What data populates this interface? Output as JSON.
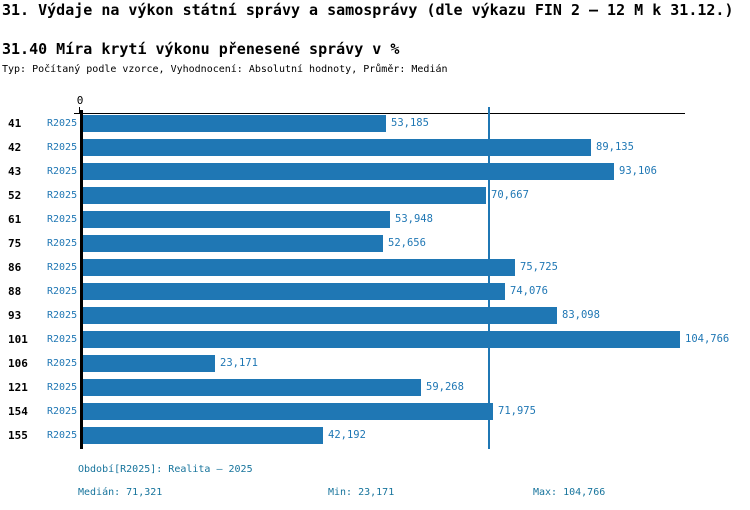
{
  "header": {
    "title": "31. Výdaje na výkon státní správy a samosprávy (dle výkazu FIN 2 – 12 M k 31.12.)",
    "subtitle": "31.40 Míra krytí výkonu přenesené správy v %",
    "meta": "Typ: Počítaný podle vzorce, Vyhodnocení: Absolutní hodnoty, Průměr: Medián"
  },
  "chart_data": {
    "type": "bar",
    "orientation": "horizontal",
    "title": "31.40 Míra krytí výkonu přenesené správy v %",
    "categories": [
      "41",
      "42",
      "43",
      "52",
      "61",
      "75",
      "86",
      "88",
      "93",
      "101",
      "106",
      "121",
      "154",
      "155"
    ],
    "row_series_label": "R2025",
    "series": [
      {
        "name": "R2025",
        "values": [
          53.185,
          89.135,
          93.106,
          70.667,
          53.948,
          52.656,
          75.725,
          74.076,
          83.098,
          104.766,
          23.171,
          59.268,
          71.975,
          42.192
        ]
      }
    ],
    "value_labels": [
      "53,185",
      "89,135",
      "93,106",
      "70,667",
      "53,948",
      "52,656",
      "75,725",
      "74,076",
      "83,098",
      "104,766",
      "23,171",
      "59,268",
      "71,975",
      "42,192"
    ],
    "x_axis": {
      "zero_label": "0",
      "min": 0
    },
    "median": 71.321,
    "min": 23.171,
    "max": 104.766,
    "bar_color": "#1f77b4",
    "median_line_color": "#1f77b4",
    "legend_position": "none",
    "grid": false
  },
  "footer": {
    "period": "Období[R2025]: Realita – 2025",
    "median": "Medián: 71,321",
    "min": "Min: 23,171",
    "max": "Max: 104,766"
  }
}
